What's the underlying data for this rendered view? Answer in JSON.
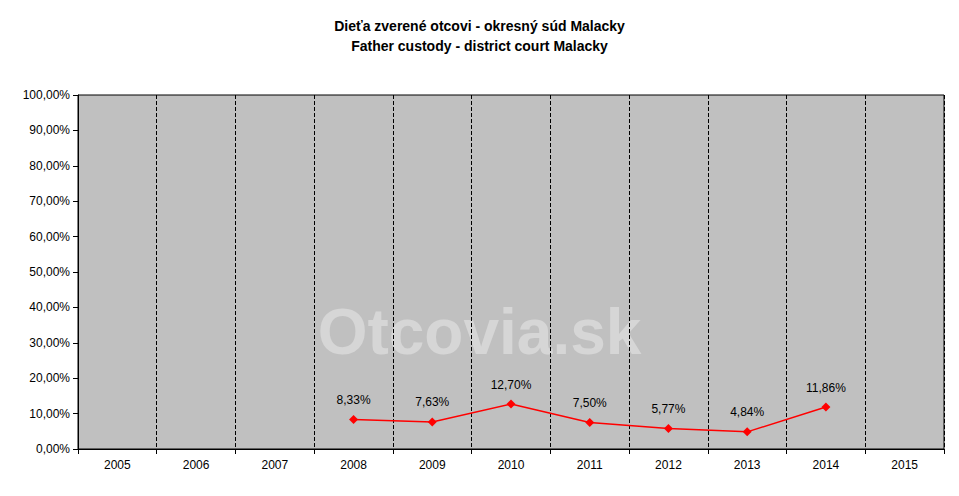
{
  "chart_data": {
    "type": "line",
    "title": "Dieťa zverené otcovi - okresný súd Malacky",
    "subtitle": "Father custody - district court Malacky",
    "annotations": [
      "Otcovia.sk"
    ],
    "categories": [
      "2005",
      "2006",
      "2007",
      "2008",
      "2009",
      "2010",
      "2011",
      "2012",
      "2013",
      "2014",
      "2015"
    ],
    "values": [
      null,
      null,
      null,
      8.33,
      7.63,
      12.7,
      7.5,
      5.77,
      4.84,
      11.86,
      null
    ],
    "value_labels": [
      null,
      null,
      null,
      "8,33%",
      "7,63%",
      "12,70%",
      "7,50%",
      "5,77%",
      "4,84%",
      "11,86%",
      null
    ],
    "color": "#ff0000",
    "marker": "diamond",
    "ylim": [
      0,
      100
    ],
    "yticks": [
      {
        "value": 0,
        "label": "0,00%"
      },
      {
        "value": 10,
        "label": "10,00%"
      },
      {
        "value": 20,
        "label": "20,00%"
      },
      {
        "value": 30,
        "label": "30,00%"
      },
      {
        "value": 40,
        "label": "40,00%"
      },
      {
        "value": 50,
        "label": "50,00%"
      },
      {
        "value": 60,
        "label": "60,00%"
      },
      {
        "value": 70,
        "label": "70,00%"
      },
      {
        "value": 80,
        "label": "80,00%"
      },
      {
        "value": 90,
        "label": "90,00%"
      },
      {
        "value": 100,
        "label": "100,00%"
      }
    ],
    "grid": true,
    "data_labels": true
  }
}
